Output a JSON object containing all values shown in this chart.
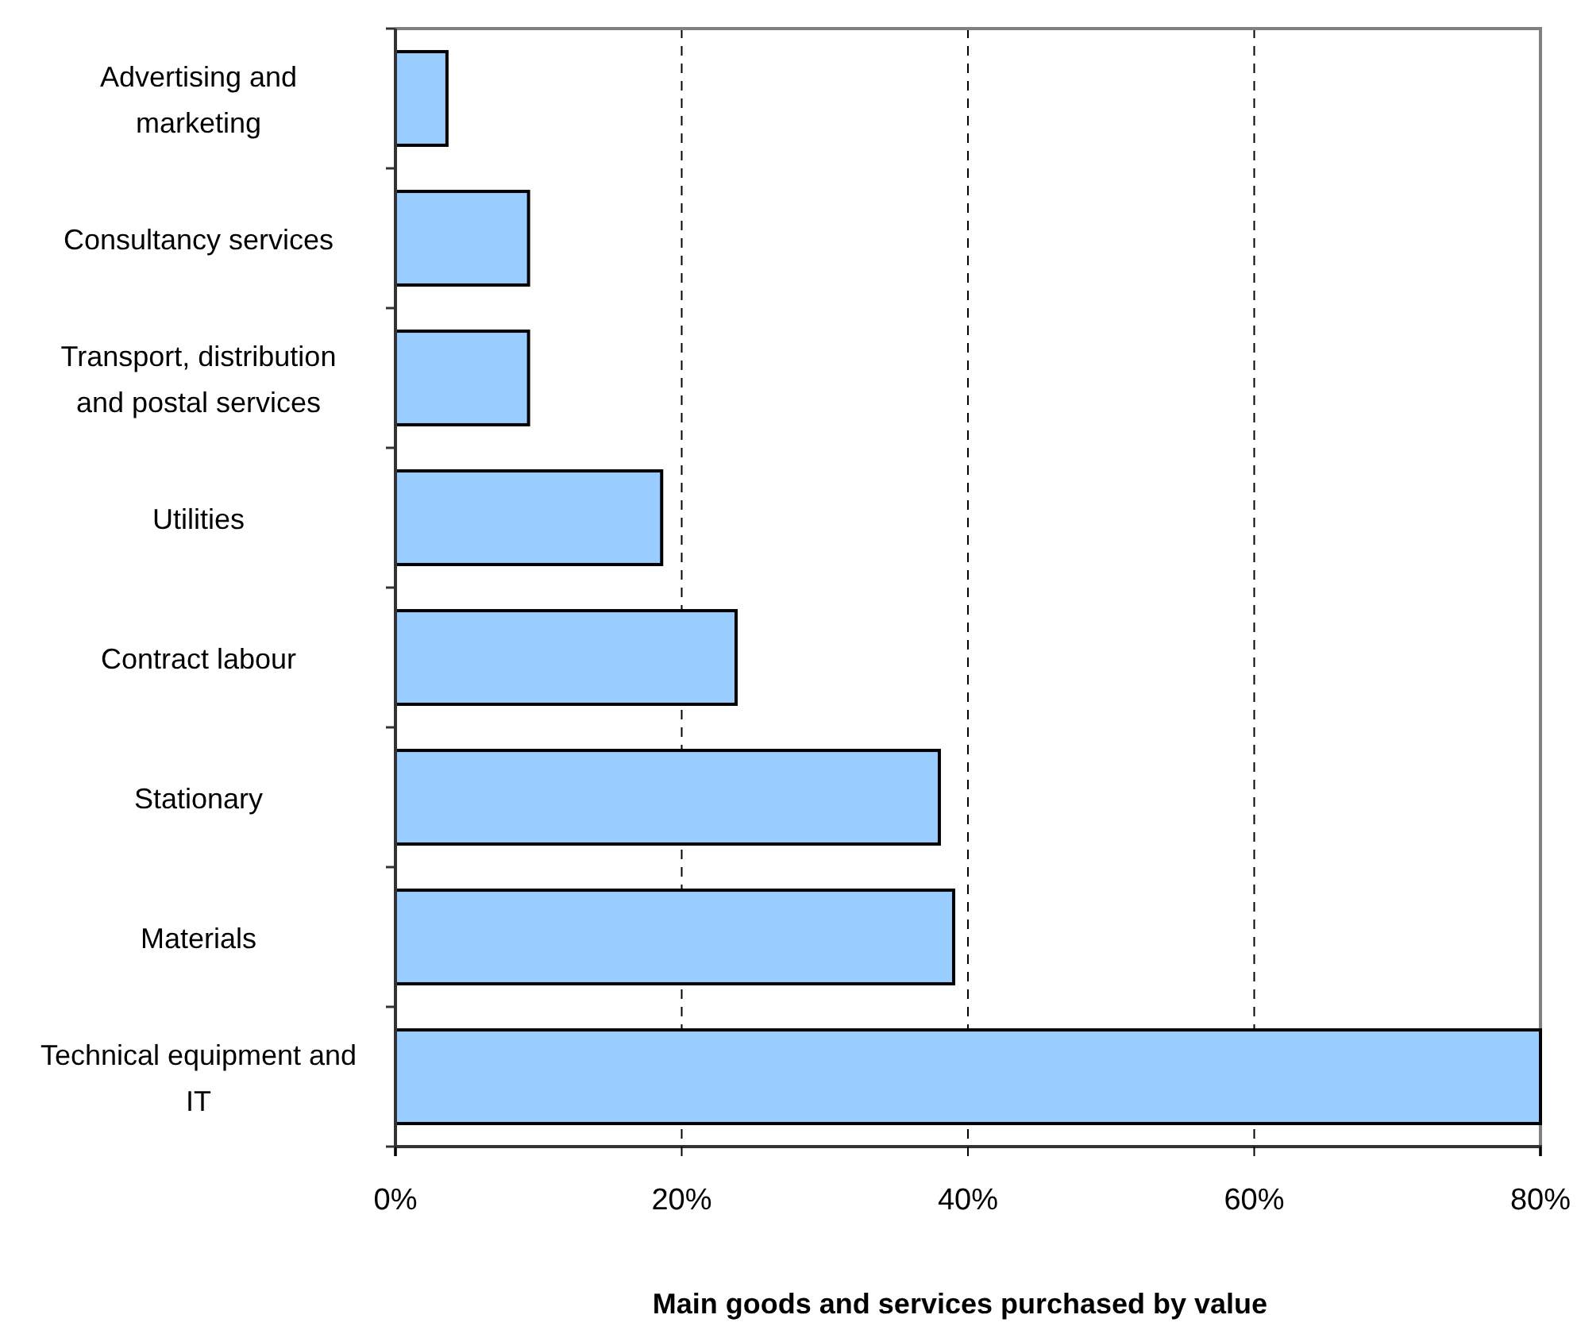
{
  "chart_data": {
    "type": "bar",
    "orientation": "horizontal",
    "xlabel": "Main goods and services purchased by value",
    "categories": [
      "Advertising and marketing",
      "Consultancy services",
      "Transport, distribution and postal services",
      "Utilities",
      "Contract labour",
      "Stationary",
      "Materials",
      "Technical equipment and IT"
    ],
    "values": [
      3.6,
      9.3,
      9.3,
      18.6,
      23.8,
      38,
      39,
      80
    ],
    "color": "#99ccff",
    "xlim": [
      0,
      80
    ],
    "xticks": [
      {
        "value": 0,
        "label": "0%"
      },
      {
        "value": 20,
        "label": "20%"
      },
      {
        "value": 40,
        "label": "40%"
      },
      {
        "value": 60,
        "label": "60%"
      },
      {
        "value": 80,
        "label": "80%"
      }
    ],
    "grid": "x"
  }
}
